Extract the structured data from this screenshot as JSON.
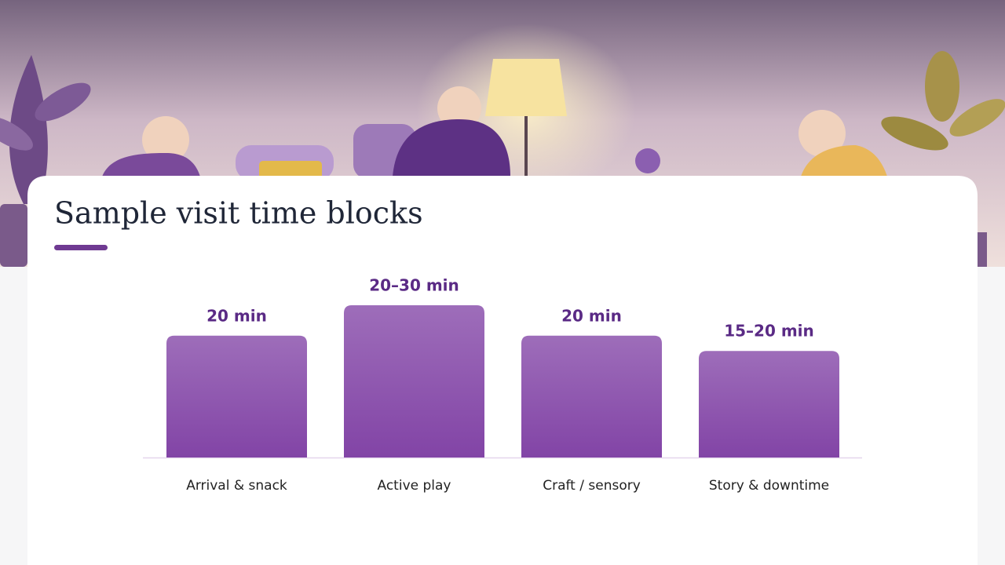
{
  "chart_data": {
    "type": "bar",
    "title": "Sample visit time blocks",
    "categories": [
      "Arrival & snack",
      "Active play",
      "Craft / sensory",
      "Story & downtime"
    ],
    "values": [
      20,
      25,
      20,
      17.5
    ],
    "value_labels": [
      "20 min",
      "20–30 min",
      "20 min",
      "15–20 min"
    ],
    "color": "#8244a6"
  }
}
